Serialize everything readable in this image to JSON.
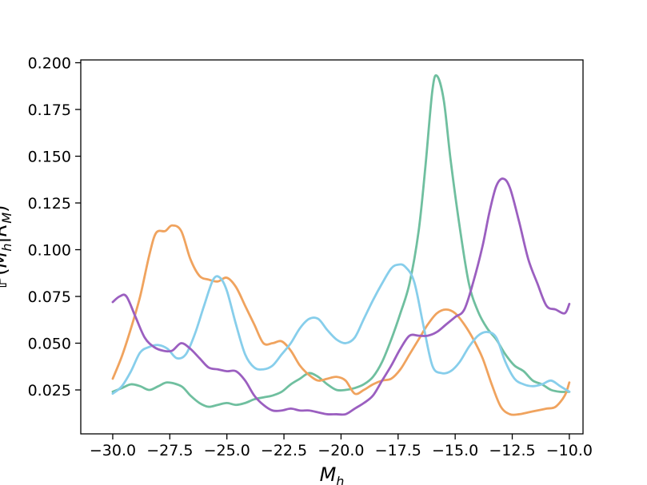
{
  "chart_data": {
    "type": "line",
    "xlabel": "M_h",
    "ylabel": "P(M_h|R_M)",
    "xlim": [
      -31.4,
      -9.4
    ],
    "ylim": [
      0.0015,
      0.2015
    ],
    "grid": false,
    "legend": "none",
    "xticks": [
      -30.0,
      -27.5,
      -25.0,
      -22.5,
      -20.0,
      -17.5,
      -15.0,
      -12.5,
      -10.0
    ],
    "xtick_labels": [
      "−30.0",
      "−27.5",
      "−25.0",
      "−22.5",
      "−20.0",
      "−17.5",
      "−15.0",
      "−12.5",
      "−10.0"
    ],
    "yticks": [
      0.025,
      0.05,
      0.075,
      0.1,
      0.125,
      0.15,
      0.175,
      0.2
    ],
    "ytick_labels": [
      "0.025",
      "0.050",
      "0.075",
      "0.100",
      "0.125",
      "0.150",
      "0.175",
      "0.200"
    ],
    "series": [
      {
        "color": "#6fbf9f",
        "x": [
          -30.0,
          -29.6,
          -29.2,
          -28.8,
          -28.4,
          -28.0,
          -27.6,
          -27.0,
          -26.6,
          -26.2,
          -25.8,
          -25.4,
          -25.0,
          -24.6,
          -24.2,
          -23.8,
          -23.4,
          -23.0,
          -22.6,
          -22.2,
          -21.8,
          -21.4,
          -21.0,
          -20.6,
          -20.2,
          -19.8,
          -19.4,
          -19.0,
          -18.6,
          -18.2,
          -17.8,
          -17.4,
          -17.0,
          -16.6,
          -16.3,
          -16.0,
          -15.8,
          -15.5,
          -15.2,
          -14.8,
          -14.4,
          -14.0,
          -13.6,
          -13.2,
          -12.8,
          -12.4,
          -12.0,
          -11.6,
          -11.2,
          -10.8,
          -10.4,
          -10.0
        ],
        "y": [
          0.024,
          0.026,
          0.028,
          0.027,
          0.025,
          0.027,
          0.029,
          0.027,
          0.022,
          0.018,
          0.016,
          0.017,
          0.018,
          0.017,
          0.018,
          0.02,
          0.021,
          0.022,
          0.024,
          0.028,
          0.031,
          0.034,
          0.032,
          0.028,
          0.025,
          0.025,
          0.026,
          0.028,
          0.032,
          0.04,
          0.052,
          0.066,
          0.082,
          0.11,
          0.145,
          0.185,
          0.193,
          0.18,
          0.148,
          0.112,
          0.082,
          0.067,
          0.058,
          0.052,
          0.044,
          0.038,
          0.035,
          0.03,
          0.028,
          0.025,
          0.024,
          0.024
        ]
      },
      {
        "color": "#f0a35e",
        "x": [
          -30.0,
          -29.6,
          -29.2,
          -28.8,
          -28.4,
          -28.1,
          -27.7,
          -27.4,
          -27.0,
          -26.6,
          -26.2,
          -25.8,
          -25.4,
          -25.0,
          -24.6,
          -24.2,
          -23.8,
          -23.4,
          -23.0,
          -22.6,
          -22.2,
          -21.8,
          -21.4,
          -21.0,
          -20.6,
          -20.2,
          -19.8,
          -19.4,
          -19.0,
          -18.6,
          -18.2,
          -17.8,
          -17.4,
          -17.0,
          -16.6,
          -16.2,
          -15.8,
          -15.4,
          -15.0,
          -14.6,
          -14.2,
          -13.8,
          -13.4,
          -13.0,
          -12.6,
          -12.2,
          -11.8,
          -11.4,
          -11.0,
          -10.6,
          -10.2,
          -10.0
        ],
        "y": [
          0.031,
          0.043,
          0.058,
          0.075,
          0.097,
          0.109,
          0.11,
          0.113,
          0.11,
          0.095,
          0.086,
          0.084,
          0.083,
          0.085,
          0.08,
          0.07,
          0.06,
          0.05,
          0.05,
          0.051,
          0.046,
          0.038,
          0.033,
          0.03,
          0.031,
          0.032,
          0.03,
          0.023,
          0.025,
          0.028,
          0.03,
          0.031,
          0.036,
          0.044,
          0.052,
          0.06,
          0.066,
          0.068,
          0.066,
          0.06,
          0.052,
          0.042,
          0.028,
          0.016,
          0.012,
          0.012,
          0.013,
          0.014,
          0.015,
          0.016,
          0.022,
          0.029
        ]
      },
      {
        "color": "#87ceeb",
        "x": [
          -30.0,
          -29.6,
          -29.2,
          -28.8,
          -28.4,
          -28.0,
          -27.6,
          -27.2,
          -26.8,
          -26.4,
          -26.0,
          -25.6,
          -25.3,
          -25.0,
          -24.6,
          -24.2,
          -23.8,
          -23.4,
          -23.0,
          -22.6,
          -22.2,
          -21.8,
          -21.4,
          -21.0,
          -20.6,
          -20.2,
          -19.8,
          -19.4,
          -19.0,
          -18.6,
          -18.2,
          -17.8,
          -17.5,
          -17.2,
          -16.8,
          -16.4,
          -16.0,
          -15.6,
          -15.2,
          -14.8,
          -14.4,
          -14.0,
          -13.6,
          -13.2,
          -12.8,
          -12.4,
          -12.0,
          -11.6,
          -11.2,
          -10.8,
          -10.4,
          -10.0
        ],
        "y": [
          0.023,
          0.027,
          0.035,
          0.045,
          0.048,
          0.049,
          0.047,
          0.042,
          0.044,
          0.055,
          0.07,
          0.084,
          0.085,
          0.078,
          0.06,
          0.044,
          0.037,
          0.036,
          0.038,
          0.044,
          0.05,
          0.058,
          0.063,
          0.063,
          0.057,
          0.052,
          0.05,
          0.053,
          0.063,
          0.073,
          0.082,
          0.09,
          0.092,
          0.091,
          0.083,
          0.06,
          0.038,
          0.034,
          0.035,
          0.04,
          0.048,
          0.054,
          0.056,
          0.053,
          0.04,
          0.031,
          0.028,
          0.027,
          0.028,
          0.03,
          0.027,
          0.024
        ]
      },
      {
        "color": "#9b5fc0",
        "x": [
          -30.0,
          -29.7,
          -29.4,
          -29.0,
          -28.6,
          -28.2,
          -27.8,
          -27.4,
          -27.0,
          -26.6,
          -26.2,
          -25.8,
          -25.4,
          -25.0,
          -24.6,
          -24.2,
          -23.8,
          -23.4,
          -23.0,
          -22.6,
          -22.2,
          -21.8,
          -21.4,
          -21.0,
          -20.6,
          -20.2,
          -19.8,
          -19.4,
          -19.0,
          -18.6,
          -18.2,
          -17.8,
          -17.4,
          -17.0,
          -16.6,
          -16.2,
          -15.8,
          -15.4,
          -15.0,
          -14.6,
          -14.2,
          -13.8,
          -13.5,
          -13.2,
          -12.9,
          -12.6,
          -12.2,
          -11.8,
          -11.4,
          -11.0,
          -10.6,
          -10.2,
          -10.0
        ],
        "y": [
          0.072,
          0.075,
          0.075,
          0.064,
          0.053,
          0.048,
          0.046,
          0.046,
          0.05,
          0.047,
          0.042,
          0.037,
          0.036,
          0.035,
          0.035,
          0.03,
          0.022,
          0.017,
          0.014,
          0.014,
          0.015,
          0.014,
          0.014,
          0.013,
          0.012,
          0.012,
          0.012,
          0.015,
          0.018,
          0.022,
          0.03,
          0.038,
          0.047,
          0.054,
          0.054,
          0.054,
          0.056,
          0.06,
          0.064,
          0.068,
          0.083,
          0.102,
          0.12,
          0.134,
          0.138,
          0.133,
          0.115,
          0.095,
          0.082,
          0.07,
          0.068,
          0.066,
          0.071
        ]
      }
    ]
  }
}
